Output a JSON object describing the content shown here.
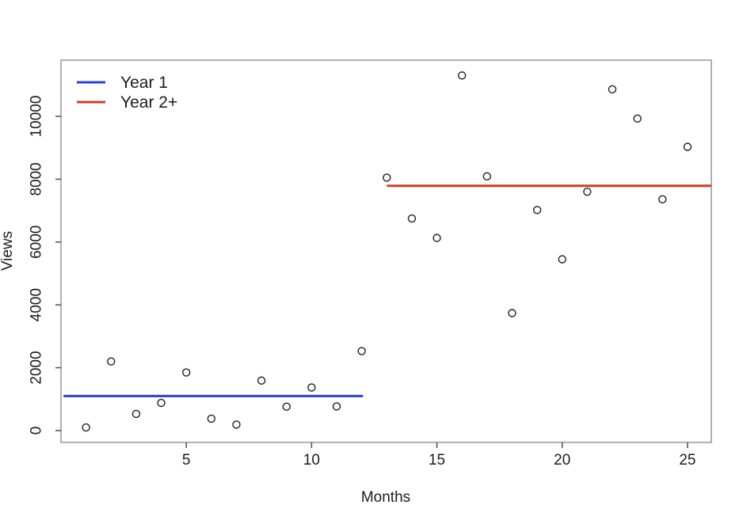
{
  "figure": {
    "background": "#ffffff",
    "box_color": "#909090",
    "tick_color": "#4d4d4d",
    "text_color": "#1c1c1c"
  },
  "chart_data": {
    "type": "scatter",
    "title": "",
    "xlabel": "Months",
    "ylabel": "Views",
    "x": [
      1,
      2,
      3,
      4,
      5,
      6,
      7,
      8,
      9,
      10,
      11,
      12,
      13,
      14,
      15,
      16,
      17,
      18,
      19,
      20,
      21,
      22,
      23,
      24,
      25
    ],
    "y": [
      100,
      2200,
      530,
      880,
      1850,
      380,
      190,
      1590,
      760,
      1370,
      770,
      2530,
      8050,
      6750,
      6130,
      11300,
      8090,
      3740,
      7020,
      5450,
      7600,
      10860,
      9930,
      7360,
      9030
    ],
    "xlim": [
      0,
      25.95
    ],
    "ylim": [
      -378,
      11788
    ],
    "x_ticks": [
      5,
      10,
      15,
      20,
      25
    ],
    "y_ticks": [
      0,
      2000,
      4000,
      6000,
      8000,
      10000
    ],
    "grid": false,
    "point_style": {
      "marker": "open-circle",
      "color": "#1f1f1f"
    },
    "mean_lines": [
      {
        "name": "Year 1",
        "value": 1100,
        "x_start": 0.1,
        "x_end": 12.05,
        "color": "#2741d6"
      },
      {
        "name": "Year 2+",
        "value": 7790,
        "x_start": 13.0,
        "x_end": 25.95,
        "color": "#d53c28"
      }
    ],
    "legend": {
      "position": "top-left",
      "entries": [
        {
          "label": "Year 1",
          "color": "#2741d6"
        },
        {
          "label": "Year 2+",
          "color": "#d53c28"
        }
      ]
    }
  }
}
